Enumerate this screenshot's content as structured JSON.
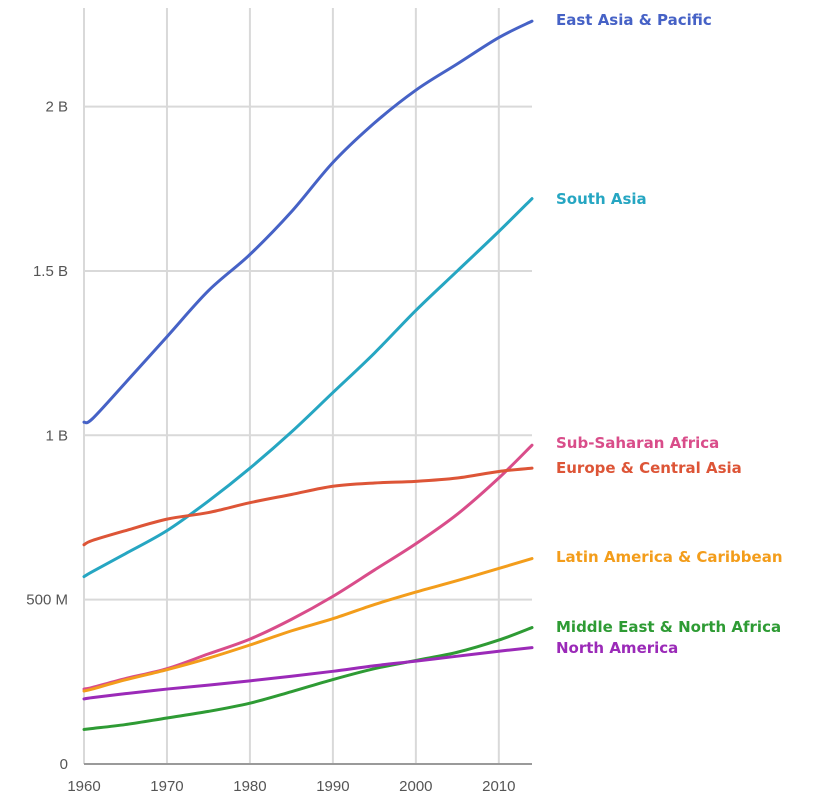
{
  "chart_data": {
    "type": "line",
    "title": "",
    "xlabel": "",
    "ylabel": "",
    "xlim": [
      1960,
      2014
    ],
    "ylim": [
      0,
      2300000000
    ],
    "grid": true,
    "legend": "inline-right",
    "x_ticks": [
      {
        "value": 1960,
        "label": "1960"
      },
      {
        "value": 1970,
        "label": "1970"
      },
      {
        "value": 1980,
        "label": "1980"
      },
      {
        "value": 1990,
        "label": "1990"
      },
      {
        "value": 2000,
        "label": "2000"
      },
      {
        "value": 2010,
        "label": "2010"
      }
    ],
    "y_ticks": [
      {
        "value": 0,
        "label": "0"
      },
      {
        "value": 500000000,
        "label": "500 M"
      },
      {
        "value": 1000000000,
        "label": "1 B"
      },
      {
        "value": 1500000000,
        "label": "1.5 B"
      },
      {
        "value": 2000000000,
        "label": "2 B"
      }
    ],
    "x": [
      1960,
      1961,
      1965,
      1970,
      1975,
      1980,
      1985,
      1990,
      1995,
      2000,
      2005,
      2010,
      2014
    ],
    "series": [
      {
        "name": "East Asia & Pacific",
        "color": "#4662c6",
        "values": [
          1040000000,
          1050000000,
          1160000000,
          1300000000,
          1440000000,
          1550000000,
          1680000000,
          1830000000,
          1950000000,
          2050000000,
          2130000000,
          2210000000,
          2260000000
        ]
      },
      {
        "name": "South Asia",
        "color": "#26a6c2",
        "values": [
          570000000,
          585000000,
          640000000,
          710000000,
          800000000,
          900000000,
          1010000000,
          1130000000,
          1250000000,
          1380000000,
          1500000000,
          1620000000,
          1720000000
        ]
      },
      {
        "name": "Sub-Saharan Africa",
        "color": "#d94d8a",
        "values": [
          228000000,
          233000000,
          260000000,
          290000000,
          335000000,
          380000000,
          440000000,
          510000000,
          590000000,
          670000000,
          760000000,
          870000000,
          970000000
        ]
      },
      {
        "name": "Europe & Central Asia",
        "color": "#dd5537",
        "values": [
          667000000,
          680000000,
          710000000,
          745000000,
          765000000,
          795000000,
          820000000,
          845000000,
          855000000,
          860000000,
          870000000,
          890000000,
          900000000
        ]
      },
      {
        "name": "Latin America & Caribbean",
        "color": "#f39d1b",
        "values": [
          222000000,
          228000000,
          256000000,
          287000000,
          322000000,
          362000000,
          405000000,
          442000000,
          485000000,
          523000000,
          558000000,
          595000000,
          625000000
        ]
      },
      {
        "name": "Middle East & North Africa",
        "color": "#2e9b34",
        "values": [
          105000000,
          108000000,
          120000000,
          140000000,
          160000000,
          185000000,
          220000000,
          257000000,
          290000000,
          315000000,
          340000000,
          377000000,
          415000000
        ]
      },
      {
        "name": "North America",
        "color": "#9b2ab8",
        "values": [
          198000000,
          202000000,
          214000000,
          228000000,
          240000000,
          253000000,
          267000000,
          282000000,
          299000000,
          313000000,
          328000000,
          343000000,
          354000000
        ]
      }
    ]
  }
}
